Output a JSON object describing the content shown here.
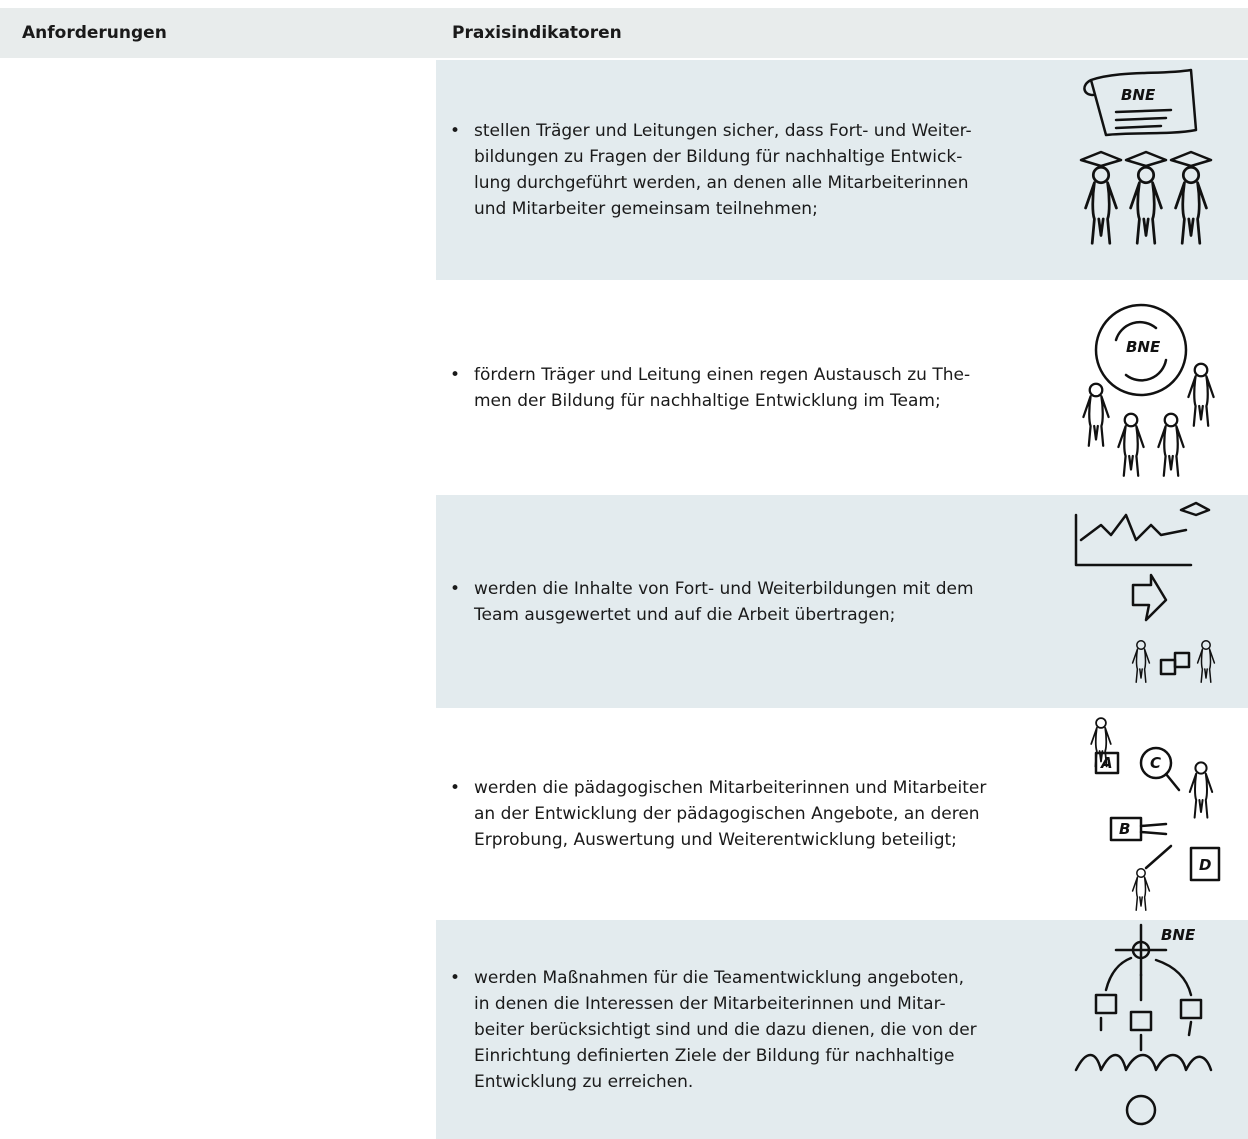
{
  "table": {
    "headers": [
      "Anforderungen",
      "Praxisindikatoren"
    ],
    "rows": [
      {
        "lines": [
          "stellen Träger und Leitungen sicher, dass Fort- und Weiter-",
          "bildungen zu Fragen der Bildung für nachhaltige Entwick-",
          "lung durchgeführt werden, an denen alle Mitarbeiterinnen",
          "und Mitarbeiter gemeinsam teilnehmen;"
        ],
        "icon_texts": [
          "BNE"
        ]
      },
      {
        "lines": [
          "fördern Träger und Leitung einen regen Austausch zu The-",
          "men der Bildung für nachhaltige Entwicklung im Team;"
        ],
        "icon_texts": [
          "BNE"
        ]
      },
      {
        "lines": [
          "werden die Inhalte von Fort- und Weiterbildungen mit dem",
          "Team ausgewertet und auf die Arbeit übertragen;"
        ],
        "icon_texts": []
      },
      {
        "lines": [
          "werden die pädagogischen Mitarbeiterinnen und Mitarbeiter",
          "an der Entwicklung der pädagogischen Angebote, an deren",
          "Erprobung, Auswertung und Weiterentwicklung beteiligt;"
        ],
        "icon_texts": [
          "A",
          "C",
          "B",
          "D"
        ]
      },
      {
        "lines": [
          "werden Maßnahmen für die Teamentwicklung angeboten,",
          "in denen die Interessen der Mitarbeiterinnen und Mitar-",
          "beiter berücksichtigt sind und die dazu dienen, die von der",
          "Einrichtung definierten Ziele der Bildung für nachhaltige",
          "Entwicklung zu erreichen."
        ],
        "icon_texts": [
          "BNE"
        ]
      }
    ]
  }
}
